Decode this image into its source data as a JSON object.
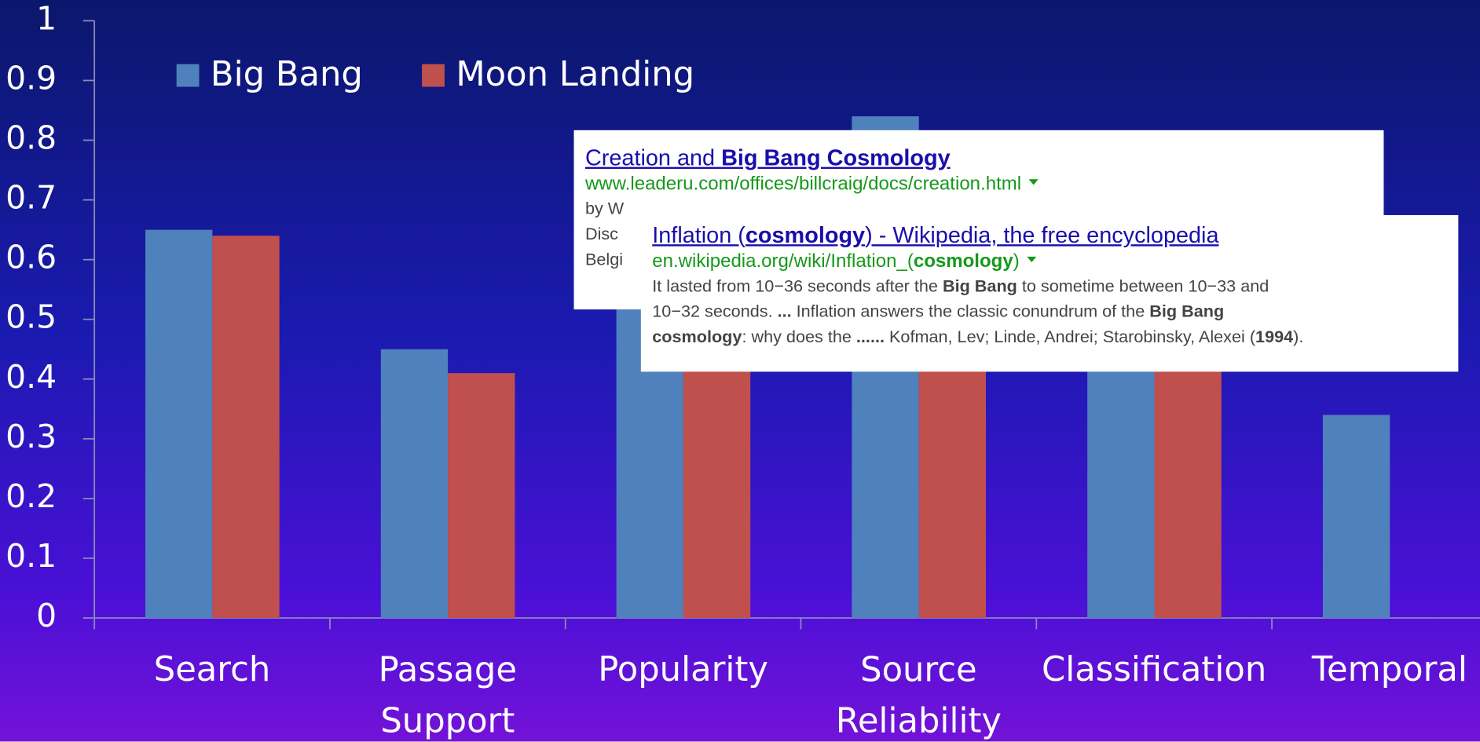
{
  "chart_data": {
    "type": "bar",
    "categories": [
      "Search",
      "Passage Support",
      "Popularity",
      "Source Reliability",
      "Classification",
      "Temporal"
    ],
    "series": [
      {
        "name": "Big Bang",
        "color": "#4f81bd",
        "values": [
          0.65,
          0.45,
          0.6,
          0.84,
          0.55,
          0.34
        ]
      },
      {
        "name": "Moon Landing",
        "color": "#c0504d",
        "values": [
          0.64,
          0.41,
          0.45,
          0.5,
          0.5,
          null
        ]
      }
    ],
    "ylim": [
      0,
      1
    ],
    "yticks": [
      0,
      0.1,
      0.2,
      0.3,
      0.4,
      0.5,
      0.6,
      0.7,
      0.8,
      0.9,
      1
    ],
    "legend": "top-left"
  },
  "results": [
    {
      "title": [
        {
          "text": "Creation and ",
          "bold": false
        },
        {
          "text": "Big Bang Cosmology",
          "bold": true
        }
      ],
      "url": [
        {
          "text": "www.leaderu.com/offices/billcraig/docs/creation.html",
          "bold": false
        }
      ],
      "lines": [
        [
          {
            "text": "by W",
            "bold": false
          }
        ],
        [
          {
            "text": "Disc",
            "bold": false
          }
        ],
        [
          {
            "text": "Belgi",
            "bold": false
          }
        ]
      ]
    },
    {
      "title": [
        {
          "text": "Inflation (",
          "bold": false
        },
        {
          "text": "cosmology",
          "bold": true
        },
        {
          "text": ") - Wikipedia, the free encyclopedia",
          "bold": false
        }
      ],
      "url": [
        {
          "text": "en.wikipedia.org/wiki/Inflation_(",
          "bold": false
        },
        {
          "text": "cosmology",
          "bold": true
        },
        {
          "text": ")",
          "bold": false
        }
      ],
      "lines": [
        [
          {
            "text": "It lasted from 10−36 seconds after the ",
            "bold": false
          },
          {
            "text": "Big Bang",
            "bold": true
          },
          {
            "text": " to sometime between 10−33 and",
            "bold": false
          }
        ],
        [
          {
            "text": "10−32 seconds. ",
            "bold": false
          },
          {
            "text": "...",
            "bold": true
          },
          {
            "text": " Inflation answers the classic conundrum of the ",
            "bold": false
          },
          {
            "text": "Big Bang",
            "bold": true
          }
        ],
        [
          {
            "text": "cosmology",
            "bold": true
          },
          {
            "text": ": why does the ",
            "bold": false
          },
          {
            "text": "......",
            "bold": true
          },
          {
            "text": " Kofman, Lev; Linde, Andrei; Starobinsky, Alexei (",
            "bold": false
          },
          {
            "text": "1994",
            "bold": true
          },
          {
            "text": ").",
            "bold": false
          }
        ]
      ]
    }
  ]
}
